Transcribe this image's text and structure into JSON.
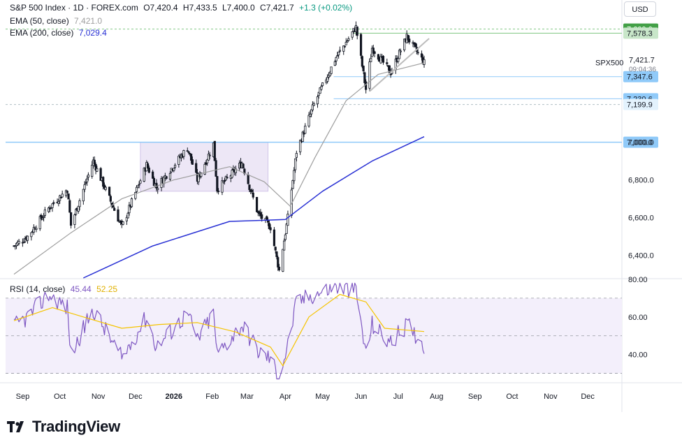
{
  "header": {
    "symbol": "S&P 500 Index · 1D · FOREX.com",
    "o": "O7,420.4",
    "h": "H7,433.5",
    "l": "L7,400.0",
    "c": "C7,421.7",
    "change": "+1.3 (+0.02%)",
    "ema50_label": "EMA (50, close)",
    "ema50_value": "7,421.0",
    "ema200_label": "EMA (200, close)",
    "ema200_value": "7,029.4",
    "rsi_label": "RSI (14, close)",
    "rsi_value": "45.44",
    "rsi_ma_value": "52.25",
    "currency": "USD"
  },
  "brand": {
    "name": "TradingView"
  },
  "colors": {
    "up": "#ffffff",
    "down": "#131722",
    "ema50": "#9e9e9e",
    "ema200": "#2830d4",
    "rsi": "#7e57c2",
    "rsi_ma": "#f5c400",
    "zone": "#d1c4e9",
    "support_green": "#4caf50",
    "level_blue": "#90caf9"
  },
  "chart_data": [
    {
      "type": "candlestick",
      "title": "S&P 500 Index",
      "ylim": [
        6280,
        7680
      ],
      "y_ticks": [
        6400,
        6600,
        6800,
        7000
      ],
      "y_tick_labels": [
        "6,400.0",
        "6,600.0",
        "6,800.0",
        "7,000.0"
      ],
      "x_tick_labels": [
        "Sep",
        "Oct",
        "Nov",
        "Dec",
        "2026",
        "Feb",
        "Mar",
        "Apr",
        "May",
        "Jun",
        "Jul",
        "Aug",
        "Sep",
        "Oct",
        "Nov",
        "Dec"
      ],
      "last_price": {
        "label": "SPX500",
        "value": "7,421.7",
        "countdown": "09:04:36"
      },
      "levels": [
        {
          "value": 7600,
          "label": "7,600.0",
          "style": "green"
        },
        {
          "value": 7578.3,
          "label": "7,578.3",
          "style": "green"
        },
        {
          "value": 7347.6,
          "label": "7,347.6",
          "style": "blue"
        },
        {
          "value": 7230.6,
          "label": "7,230.6",
          "style": "blue"
        },
        {
          "value": 7199.9,
          "label": "7,199.9",
          "style": "dashed"
        },
        {
          "value": 7000,
          "label": "7,000.0",
          "style": "blue"
        }
      ],
      "consolidation_zone": {
        "y_low": 6740,
        "y_high": 7000
      },
      "ohlc_waypoints": [
        {
          "x": "2025-08-25",
          "close": 6450
        },
        {
          "x": "2025-09-05",
          "close": 6500
        },
        {
          "x": "2025-09-22",
          "close": 6650
        },
        {
          "x": "2025-10-07",
          "close": 6750
        },
        {
          "x": "2025-10-10",
          "close": 6560
        },
        {
          "x": "2025-10-28",
          "close": 6900
        },
        {
          "x": "2025-11-20",
          "close": 6550
        },
        {
          "x": "2025-12-10",
          "close": 6880
        },
        {
          "x": "2025-12-18",
          "close": 6760
        },
        {
          "x": "2026-01-12",
          "close": 6970
        },
        {
          "x": "2026-01-20",
          "close": 6800
        },
        {
          "x": "2026-02-02",
          "close": 6990
        },
        {
          "x": "2026-02-05",
          "close": 6750
        },
        {
          "x": "2026-02-25",
          "close": 6890
        },
        {
          "x": "2026-03-10",
          "close": 6620
        },
        {
          "x": "2026-03-20",
          "close": 6550
        },
        {
          "x": "2026-03-27",
          "close": 6320
        },
        {
          "x": "2026-04-03",
          "close": 6600
        },
        {
          "x": "2026-04-10",
          "close": 6950
        },
        {
          "x": "2026-04-24",
          "close": 7200
        },
        {
          "x": "2026-05-12",
          "close": 7450
        },
        {
          "x": "2026-05-28",
          "close": 7610
        },
        {
          "x": "2026-06-05",
          "close": 7280
        },
        {
          "x": "2026-06-10",
          "close": 7500
        },
        {
          "x": "2026-06-25",
          "close": 7370
        },
        {
          "x": "2026-07-08",
          "close": 7560
        },
        {
          "x": "2026-07-22",
          "close": 7421.7
        }
      ],
      "ema50": [
        {
          "x": "2025-08-25",
          "y": 6300
        },
        {
          "x": "2025-10-10",
          "y": 6520
        },
        {
          "x": "2025-11-20",
          "y": 6700
        },
        {
          "x": "2026-01-01",
          "y": 6800
        },
        {
          "x": "2026-02-15",
          "y": 6870
        },
        {
          "x": "2026-03-15",
          "y": 6790
        },
        {
          "x": "2026-04-05",
          "y": 6660
        },
        {
          "x": "2026-04-25",
          "y": 6920
        },
        {
          "x": "2026-05-20",
          "y": 7220
        },
        {
          "x": "2026-06-15",
          "y": 7360
        },
        {
          "x": "2026-07-22",
          "y": 7421
        }
      ],
      "ema200": [
        {
          "x": "2025-10-20",
          "y": 6280
        },
        {
          "x": "2025-12-15",
          "y": 6450
        },
        {
          "x": "2026-02-15",
          "y": 6580
        },
        {
          "x": "2026-04-01",
          "y": 6590
        },
        {
          "x": "2026-05-01",
          "y": 6740
        },
        {
          "x": "2026-06-10",
          "y": 6900
        },
        {
          "x": "2026-07-22",
          "y": 7029.4
        }
      ],
      "trendline": [
        {
          "x": "2026-06-08",
          "y": 7270
        },
        {
          "x": "2026-07-26",
          "y": 7550
        }
      ]
    },
    {
      "type": "line",
      "title": "RSI (14, close)",
      "ylim": [
        25,
        80
      ],
      "y_ticks": [
        40,
        60,
        80
      ],
      "y_tick_labels": [
        "40.00",
        "60.00",
        "80.00"
      ],
      "bands": {
        "upper": 70,
        "middle": 50,
        "lower": 30
      },
      "series": [
        {
          "name": "RSI",
          "points": [
            {
              "x": "2025-08-25",
              "y": 55
            },
            {
              "x": "2025-09-05",
              "y": 60
            },
            {
              "x": "2025-09-22",
              "y": 72
            },
            {
              "x": "2025-10-07",
              "y": 65
            },
            {
              "x": "2025-10-10",
              "y": 40
            },
            {
              "x": "2025-10-28",
              "y": 64
            },
            {
              "x": "2025-11-20",
              "y": 38
            },
            {
              "x": "2025-12-10",
              "y": 60
            },
            {
              "x": "2025-12-18",
              "y": 44
            },
            {
              "x": "2026-01-12",
              "y": 62
            },
            {
              "x": "2026-01-20",
              "y": 48
            },
            {
              "x": "2026-02-02",
              "y": 62
            },
            {
              "x": "2026-02-05",
              "y": 40
            },
            {
              "x": "2026-02-25",
              "y": 56
            },
            {
              "x": "2026-03-10",
              "y": 42
            },
            {
              "x": "2026-03-20",
              "y": 38
            },
            {
              "x": "2026-03-27",
              "y": 28
            },
            {
              "x": "2026-04-03",
              "y": 45
            },
            {
              "x": "2026-04-10",
              "y": 68
            },
            {
              "x": "2026-04-24",
              "y": 72
            },
            {
              "x": "2026-05-12",
              "y": 76
            },
            {
              "x": "2026-05-28",
              "y": 74
            },
            {
              "x": "2026-06-05",
              "y": 40
            },
            {
              "x": "2026-06-10",
              "y": 56
            },
            {
              "x": "2026-06-25",
              "y": 46
            },
            {
              "x": "2026-07-08",
              "y": 56
            },
            {
              "x": "2026-07-22",
              "y": 45.44
            }
          ]
        },
        {
          "name": "RSI MA",
          "points": [
            {
              "x": "2025-08-25",
              "y": 58
            },
            {
              "x": "2025-09-25",
              "y": 65
            },
            {
              "x": "2025-10-20",
              "y": 60
            },
            {
              "x": "2025-11-20",
              "y": 54
            },
            {
              "x": "2025-12-20",
              "y": 56
            },
            {
              "x": "2026-01-20",
              "y": 57
            },
            {
              "x": "2026-02-20",
              "y": 52
            },
            {
              "x": "2026-03-20",
              "y": 44
            },
            {
              "x": "2026-03-30",
              "y": 34
            },
            {
              "x": "2026-04-20",
              "y": 60
            },
            {
              "x": "2026-05-15",
              "y": 72
            },
            {
              "x": "2026-06-05",
              "y": 68
            },
            {
              "x": "2026-06-20",
              "y": 54
            },
            {
              "x": "2026-07-22",
              "y": 52.25
            }
          ]
        }
      ]
    }
  ]
}
